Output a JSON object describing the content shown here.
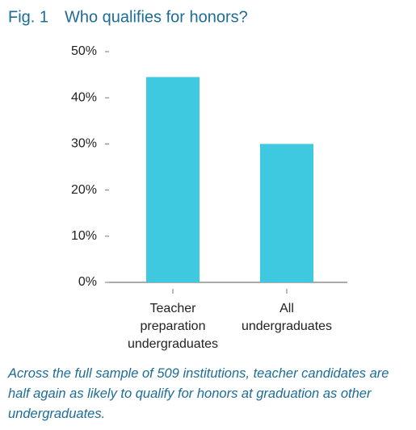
{
  "chart_data": {
    "type": "bar",
    "figure_label": "Fig. 1",
    "title": "Who qualifies for honors?",
    "categories": [
      "Teacher preparation undergraduates",
      "All undergraduates"
    ],
    "values": [
      44.5,
      30
    ],
    "color": "#3fc9e1",
    "ylim": [
      0,
      50
    ],
    "yticks": [
      {
        "value": 0,
        "label": "0%"
      },
      {
        "value": 10,
        "label": "10%"
      },
      {
        "value": 20,
        "label": "20%"
      },
      {
        "value": 30,
        "label": "30%"
      },
      {
        "value": 40,
        "label": "40%"
      },
      {
        "value": 50,
        "label": "50%"
      }
    ],
    "caption": "Across the full sample of 509 institutions, teacher candidates are half again as likely to qualify for honors at graduation as other undergraduates."
  }
}
